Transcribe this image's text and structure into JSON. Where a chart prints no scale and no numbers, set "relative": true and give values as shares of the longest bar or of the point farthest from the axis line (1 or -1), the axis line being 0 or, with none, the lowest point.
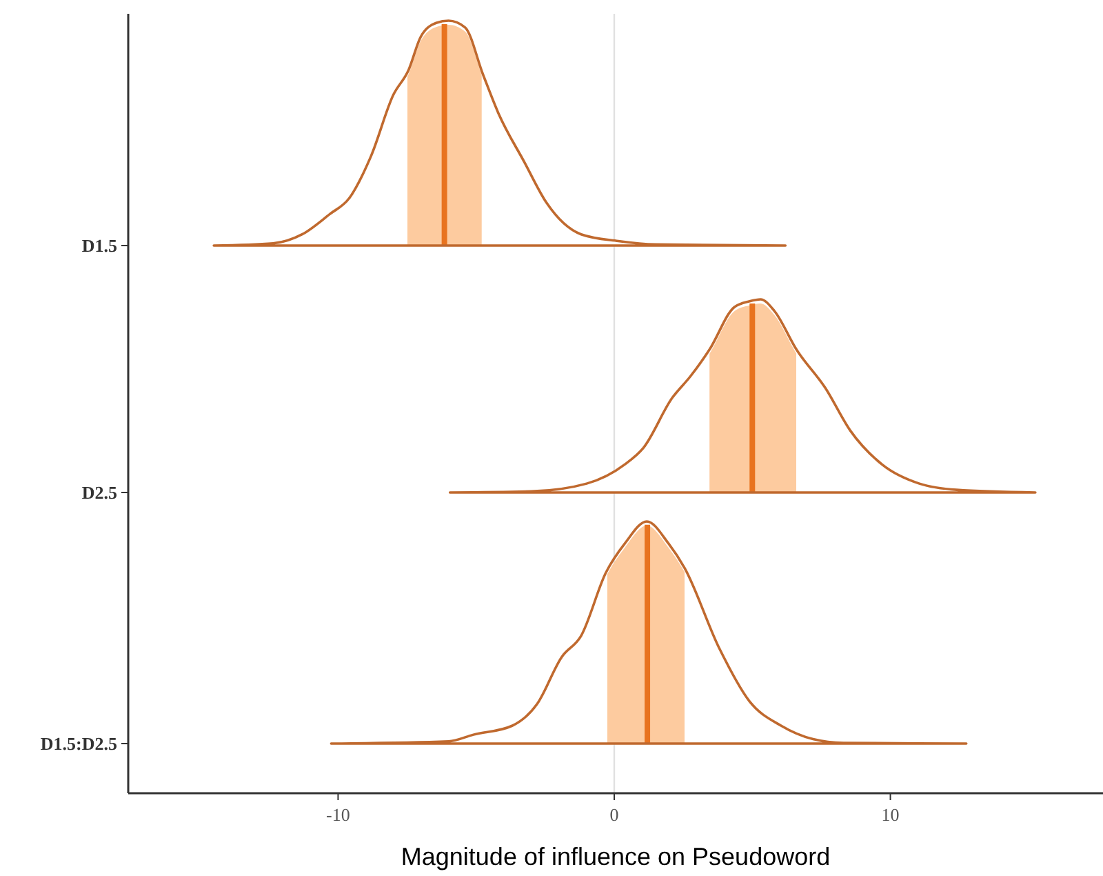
{
  "chart_data": [
    {
      "type": "area",
      "relative": true,
      "ylabel": "D1.5",
      "xlim": [
        -17.6,
        17.7
      ],
      "xticks": [
        -10,
        0,
        10
      ],
      "tick_labels": false,
      "series": [
        {
          "color": "#c0692e",
          "x": [
            -14.5,
            -12.35,
            -11.3,
            -10.3,
            -9.6,
            -8.8,
            -8.0,
            -7.45,
            -7.0,
            -6.45,
            -6.0,
            -5.4,
            -4.75,
            -4.2,
            -3.25,
            -2.45,
            -1.2,
            0.15,
            1.5,
            6.2
          ],
          "values": [
            0,
            0.01,
            0.05,
            0.14,
            0.21,
            0.4,
            0.67,
            0.78,
            0.93,
            0.99,
            1,
            0.97,
            0.76,
            0.59,
            0.37,
            0.19,
            0.05,
            0.02,
            0.005,
            0
          ]
        }
      ],
      "bands": [
        {
          "axis": "x",
          "from": -7.5,
          "to": -4.8,
          "color": "#fdcb9f"
        }
      ],
      "ref_lines": [
        {
          "axis": "x",
          "value": 0,
          "color": "#e0e0e0"
        },
        {
          "axis": "x",
          "value": -6.15,
          "color": "#e8731f"
        }
      ]
    },
    {
      "type": "area",
      "relative": true,
      "ylabel": "D2.5",
      "xlim": [
        -17.6,
        17.7
      ],
      "xticks": [
        -10,
        0,
        10
      ],
      "tick_labels": false,
      "series": [
        {
          "color": "#c0692e",
          "x": [
            -5.95,
            -3.0,
            -1.0,
            0.38,
            1.05,
            2.1,
            2.75,
            3.45,
            4.35,
            4.9,
            5.3,
            5.8,
            6.6,
            7.65,
            8.55,
            9.7,
            11.05,
            12.4,
            15.25
          ],
          "values": [
            0,
            0.006,
            0.046,
            0.145,
            0.23,
            0.49,
            0.6,
            0.74,
            0.96,
            0.99,
            1,
            0.94,
            0.74,
            0.54,
            0.32,
            0.145,
            0.046,
            0.014,
            0
          ]
        }
      ],
      "bands": [
        {
          "axis": "x",
          "from": 3.45,
          "to": 6.6,
          "color": "#fdcb9f"
        }
      ],
      "ref_lines": [
        {
          "axis": "x",
          "value": 0,
          "color": "#e0e0e0"
        },
        {
          "axis": "x",
          "value": 5.0,
          "color": "#e8731f"
        }
      ]
    },
    {
      "type": "area",
      "relative": true,
      "ylabel": "D1.5:D2.5",
      "xlabel": "Magnitude of influence on Pseudoword",
      "xlim": [
        -17.6,
        17.7
      ],
      "xticks": [
        -10,
        0,
        10
      ],
      "tick_labels": "x",
      "series": [
        {
          "color": "#c0692e",
          "x": [
            -10.25,
            -6.0,
            -5.1,
            -3.7,
            -2.8,
            -1.9,
            -1.2,
            -0.3,
            0.38,
            1.18,
            1.97,
            2.55,
            3.8,
            4.9,
            6.05,
            7.2,
            8.3,
            12.75
          ],
          "values": [
            0,
            0.01,
            0.04,
            0.08,
            0.177,
            0.39,
            0.485,
            0.77,
            0.9,
            1,
            0.9,
            0.79,
            0.43,
            0.19,
            0.08,
            0.02,
            0.003,
            0
          ]
        }
      ],
      "bands": [
        {
          "axis": "x",
          "from": -0.25,
          "to": 2.55,
          "color": "#fdcb9f"
        }
      ],
      "ref_lines": [
        {
          "axis": "x",
          "value": 0,
          "color": "#e0e0e0"
        },
        {
          "axis": "x",
          "value": 1.2,
          "color": "#e8731f"
        }
      ]
    }
  ]
}
